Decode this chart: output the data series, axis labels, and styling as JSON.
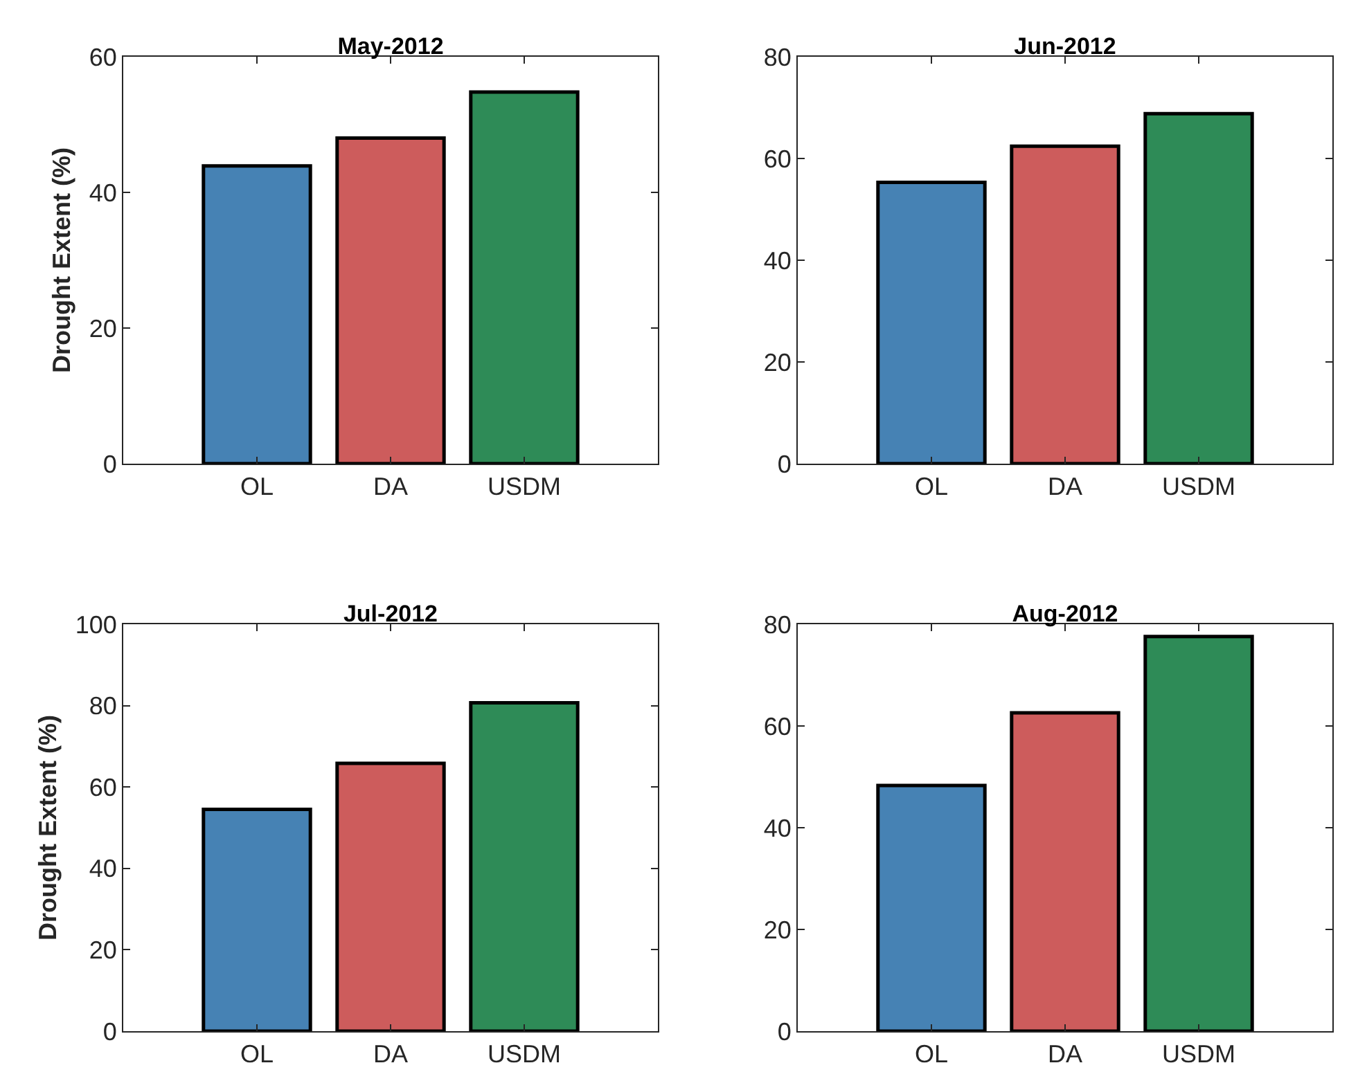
{
  "chart_data": [
    {
      "type": "bar",
      "title": "May-2012",
      "ylabel": "Drought Extent (%)",
      "categories": [
        "OL",
        "DA",
        "USDM"
      ],
      "values": [
        43.9,
        48,
        54.8
      ],
      "colors": [
        "#4682b4",
        "#cd5c5c",
        "#2e8b57"
      ],
      "ylim": [
        0,
        60
      ],
      "yticks": [
        0,
        20,
        40,
        60
      ]
    },
    {
      "type": "bar",
      "title": "Jun-2012",
      "categories": [
        "OL",
        "DA",
        "USDM"
      ],
      "values": [
        55.3,
        62.4,
        68.8
      ],
      "colors": [
        "#4682b4",
        "#cd5c5c",
        "#2e8b57"
      ],
      "ylim": [
        0,
        80
      ],
      "yticks": [
        0,
        20,
        40,
        60,
        80
      ]
    },
    {
      "type": "bar",
      "title": "Jul-2012",
      "ylabel": "Drought Extent (%)",
      "categories": [
        "OL",
        "DA",
        "USDM"
      ],
      "values": [
        54.5,
        65.8,
        80.7
      ],
      "colors": [
        "#4682b4",
        "#cd5c5c",
        "#2e8b57"
      ],
      "ylim": [
        0,
        100
      ],
      "yticks": [
        0,
        20,
        40,
        60,
        80,
        100
      ]
    },
    {
      "type": "bar",
      "title": "Aug-2012",
      "categories": [
        "OL",
        "DA",
        "USDM"
      ],
      "values": [
        48.3,
        62.6,
        77.6
      ],
      "colors": [
        "#4682b4",
        "#cd5c5c",
        "#2e8b57"
      ],
      "ylim": [
        0,
        80
      ],
      "yticks": [
        0,
        20,
        40,
        60,
        80
      ]
    }
  ]
}
